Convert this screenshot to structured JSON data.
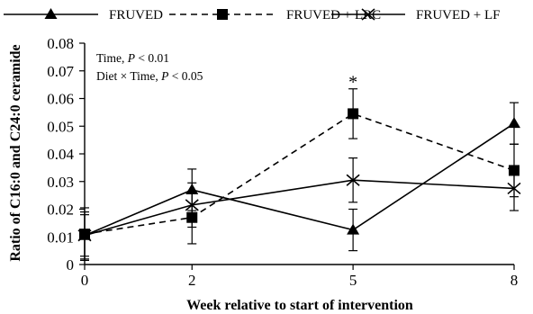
{
  "chart_data": {
    "type": "line",
    "xlabel": "Week relative to start of intervention",
    "ylabel": "Ratio of C16:0 and C24:0 ceramide",
    "x": [
      0,
      2,
      5,
      8
    ],
    "x_ticks": [
      "0",
      "2",
      "5",
      "8"
    ],
    "xlim": [
      0,
      8
    ],
    "ylim": [
      0,
      0.08
    ],
    "y_ticks": [
      "0",
      "0.01",
      "0.02",
      "0.03",
      "0.04",
      "0.05",
      "0.06",
      "0.07",
      "0.08"
    ],
    "grid": false,
    "legend_position": "top",
    "series": [
      {
        "name": "FRUVED",
        "marker": "triangle",
        "dash": "solid",
        "values": [
          0.0105,
          0.027,
          0.0125,
          0.051
        ],
        "errors": [
          0.0085,
          0.0075,
          0.0075,
          0.0075
        ]
      },
      {
        "name": "FRUVED + LRC",
        "marker": "square",
        "dash": "dashed",
        "values": [
          0.011,
          0.017,
          0.0545,
          0.034
        ],
        "errors": [
          0.0095,
          0.0095,
          0.009,
          0.0095
        ]
      },
      {
        "name": "FRUVED + LF",
        "marker": "x",
        "dash": "solid",
        "values": [
          0.0105,
          0.0215,
          0.0305,
          0.0275
        ],
        "errors": [
          0.0075,
          0.008,
          0.008,
          0.008
        ]
      }
    ],
    "annotations": [
      {
        "prefix": "Time, ",
        "italic": "P",
        "suffix": " < 0.01"
      },
      {
        "prefix": "Diet × Time, ",
        "italic": "P",
        "suffix": " < 0.05"
      }
    ],
    "significance_marker": {
      "text": "*",
      "x": 5,
      "y": 0.0665
    }
  }
}
